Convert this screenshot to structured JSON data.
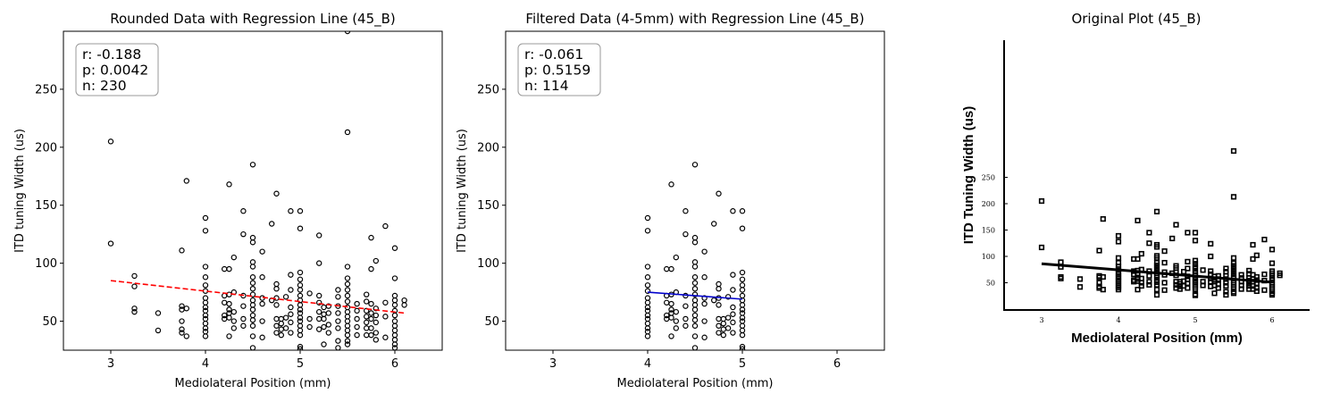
{
  "chart_data": [
    {
      "type": "scatter",
      "title": "Rounded Data with Regression Line (45_B)",
      "xlabel": "Mediolateral Position (mm)",
      "ylabel": "ITD tuning Width (us)",
      "xlim": [
        2.5,
        6.5
      ],
      "ylim": [
        25,
        300
      ],
      "xticks": [
        "3",
        "4",
        "5",
        "6"
      ],
      "yticks": [
        "50",
        "100",
        "150",
        "200",
        "250"
      ],
      "stats": [
        "r: -0.188",
        "p: 0.0042",
        "n: 230"
      ],
      "regression": {
        "x": [
          3.0,
          6.1
        ],
        "y": [
          85,
          57
        ],
        "color": "#ff0000",
        "style": "dashed"
      },
      "points": [
        [
          3.0,
          205
        ],
        [
          3.0,
          117
        ],
        [
          3.25,
          89
        ],
        [
          3.25,
          80
        ],
        [
          3.25,
          61
        ],
        [
          3.25,
          58
        ],
        [
          3.5,
          57
        ],
        [
          3.5,
          42
        ],
        [
          3.75,
          111
        ],
        [
          3.75,
          63
        ],
        [
          3.75,
          60
        ],
        [
          3.75,
          50
        ],
        [
          3.75,
          43
        ],
        [
          3.75,
          40
        ],
        [
          3.8,
          171
        ],
        [
          3.8,
          61
        ],
        [
          3.8,
          37
        ],
        [
          4.0,
          139
        ],
        [
          4.0,
          128
        ],
        [
          4.0,
          97
        ],
        [
          4.0,
          88
        ],
        [
          4.0,
          81
        ],
        [
          4.0,
          76
        ],
        [
          4.0,
          70
        ],
        [
          4.0,
          66
        ],
        [
          4.0,
          62
        ],
        [
          4.0,
          59
        ],
        [
          4.0,
          55
        ],
        [
          4.0,
          52
        ],
        [
          4.0,
          48
        ],
        [
          4.0,
          44
        ],
        [
          4.0,
          41
        ],
        [
          4.0,
          37
        ],
        [
          4.2,
          95
        ],
        [
          4.2,
          72
        ],
        [
          4.2,
          66
        ],
        [
          4.2,
          55
        ],
        [
          4.2,
          52
        ],
        [
          4.25,
          168
        ],
        [
          4.25,
          95
        ],
        [
          4.25,
          73
        ],
        [
          4.25,
          65
        ],
        [
          4.25,
          60
        ],
        [
          4.25,
          57
        ],
        [
          4.25,
          53
        ],
        [
          4.25,
          37
        ],
        [
          4.3,
          105
        ],
        [
          4.3,
          75
        ],
        [
          4.3,
          58
        ],
        [
          4.3,
          50
        ],
        [
          4.3,
          44
        ],
        [
          4.4,
          145
        ],
        [
          4.4,
          125
        ],
        [
          4.4,
          72
        ],
        [
          4.4,
          63
        ],
        [
          4.4,
          52
        ],
        [
          4.4,
          46
        ],
        [
          4.5,
          185
        ],
        [
          4.5,
          122
        ],
        [
          4.5,
          118
        ],
        [
          4.5,
          101
        ],
        [
          4.5,
          97
        ],
        [
          4.5,
          88
        ],
        [
          4.5,
          83
        ],
        [
          4.5,
          78
        ],
        [
          4.5,
          73
        ],
        [
          4.5,
          68
        ],
        [
          4.5,
          64
        ],
        [
          4.5,
          60
        ],
        [
          4.5,
          55
        ],
        [
          4.5,
          51
        ],
        [
          4.5,
          46
        ],
        [
          4.5,
          37
        ],
        [
          4.5,
          27
        ],
        [
          4.6,
          110
        ],
        [
          4.6,
          88
        ],
        [
          4.6,
          70
        ],
        [
          4.6,
          65
        ],
        [
          4.6,
          50
        ],
        [
          4.6,
          36
        ],
        [
          4.7,
          134
        ],
        [
          4.7,
          68
        ],
        [
          4.75,
          160
        ],
        [
          4.75,
          82
        ],
        [
          4.75,
          78
        ],
        [
          4.75,
          70
        ],
        [
          4.75,
          64
        ],
        [
          4.75,
          52
        ],
        [
          4.75,
          46
        ],
        [
          4.75,
          40
        ],
        [
          4.8,
          52
        ],
        [
          4.8,
          48
        ],
        [
          4.8,
          43
        ],
        [
          4.8,
          38
        ],
        [
          4.85,
          71
        ],
        [
          4.85,
          53
        ],
        [
          4.85,
          44
        ],
        [
          4.9,
          145
        ],
        [
          4.9,
          90
        ],
        [
          4.9,
          77
        ],
        [
          4.9,
          62
        ],
        [
          4.9,
          56
        ],
        [
          4.9,
          49
        ],
        [
          4.9,
          40
        ],
        [
          5.0,
          145
        ],
        [
          5.0,
          130
        ],
        [
          5.0,
          92
        ],
        [
          5.0,
          86
        ],
        [
          5.0,
          81
        ],
        [
          5.0,
          77
        ],
        [
          5.0,
          72
        ],
        [
          5.0,
          68
        ],
        [
          5.0,
          64
        ],
        [
          5.0,
          60
        ],
        [
          5.0,
          57
        ],
        [
          5.0,
          53
        ],
        [
          5.0,
          50
        ],
        [
          5.0,
          46
        ],
        [
          5.0,
          42
        ],
        [
          5.0,
          38
        ],
        [
          5.0,
          28
        ],
        [
          5.0,
          26
        ],
        [
          5.1,
          74
        ],
        [
          5.1,
          52
        ],
        [
          5.1,
          45
        ],
        [
          5.2,
          124
        ],
        [
          5.2,
          100
        ],
        [
          5.2,
          72
        ],
        [
          5.2,
          66
        ],
        [
          5.2,
          58
        ],
        [
          5.2,
          52
        ],
        [
          5.2,
          43
        ],
        [
          5.25,
          62
        ],
        [
          5.25,
          56
        ],
        [
          5.25,
          52
        ],
        [
          5.25,
          45
        ],
        [
          5.25,
          30
        ],
        [
          5.3,
          63
        ],
        [
          5.3,
          57
        ],
        [
          5.3,
          47
        ],
        [
          5.3,
          40
        ],
        [
          5.4,
          77
        ],
        [
          5.4,
          71
        ],
        [
          5.4,
          63
        ],
        [
          5.4,
          57
        ],
        [
          5.4,
          50
        ],
        [
          5.4,
          44
        ],
        [
          5.4,
          33
        ],
        [
          5.4,
          27
        ],
        [
          5.5,
          300
        ],
        [
          5.5,
          213
        ],
        [
          5.5,
          97
        ],
        [
          5.5,
          87
        ],
        [
          5.5,
          82
        ],
        [
          5.5,
          77
        ],
        [
          5.5,
          72
        ],
        [
          5.5,
          67
        ],
        [
          5.5,
          62
        ],
        [
          5.5,
          58
        ],
        [
          5.5,
          54
        ],
        [
          5.5,
          50
        ],
        [
          5.5,
          46
        ],
        [
          5.5,
          42
        ],
        [
          5.5,
          38
        ],
        [
          5.5,
          33
        ],
        [
          5.5,
          30
        ],
        [
          5.6,
          65
        ],
        [
          5.6,
          59
        ],
        [
          5.6,
          52
        ],
        [
          5.6,
          45
        ],
        [
          5.6,
          38
        ],
        [
          5.7,
          73
        ],
        [
          5.7,
          67
        ],
        [
          5.7,
          59
        ],
        [
          5.7,
          54
        ],
        [
          5.7,
          49
        ],
        [
          5.7,
          44
        ],
        [
          5.7,
          38
        ],
        [
          5.75,
          122
        ],
        [
          5.75,
          95
        ],
        [
          5.75,
          65
        ],
        [
          5.75,
          57
        ],
        [
          5.75,
          52
        ],
        [
          5.75,
          44
        ],
        [
          5.75,
          38
        ],
        [
          5.8,
          102
        ],
        [
          5.8,
          61
        ],
        [
          5.8,
          55
        ],
        [
          5.8,
          49
        ],
        [
          5.8,
          40
        ],
        [
          5.8,
          34
        ],
        [
          5.9,
          132
        ],
        [
          5.9,
          66
        ],
        [
          5.9,
          54
        ],
        [
          5.9,
          36
        ],
        [
          6.0,
          113
        ],
        [
          6.0,
          87
        ],
        [
          6.0,
          72
        ],
        [
          6.0,
          68
        ],
        [
          6.0,
          64
        ],
        [
          6.0,
          59
        ],
        [
          6.0,
          55
        ],
        [
          6.0,
          50
        ],
        [
          6.0,
          46
        ],
        [
          6.0,
          42
        ],
        [
          6.0,
          38
        ],
        [
          6.0,
          34
        ],
        [
          6.0,
          30
        ],
        [
          6.0,
          27
        ],
        [
          6.1,
          68
        ],
        [
          6.1,
          64
        ]
      ]
    },
    {
      "type": "scatter",
      "title": "Filtered Data (4-5mm) with Regression Line (45_B)",
      "xlabel": "Mediolateral Position (mm)",
      "ylabel": "ITD tuning Width (us)",
      "xlim": [
        2.5,
        6.5
      ],
      "ylim": [
        25,
        300
      ],
      "xticks": [
        "3",
        "4",
        "5",
        "6"
      ],
      "yticks": [
        "50",
        "100",
        "150",
        "200",
        "250"
      ],
      "stats": [
        "r: -0.061",
        "p: 0.5159",
        "n: 114"
      ],
      "regression": {
        "x": [
          4.0,
          5.0
        ],
        "y": [
          75,
          69
        ],
        "color": "#0000cc",
        "style": "solid"
      },
      "points": [
        [
          4.0,
          139
        ],
        [
          4.0,
          128
        ],
        [
          4.0,
          97
        ],
        [
          4.0,
          88
        ],
        [
          4.0,
          81
        ],
        [
          4.0,
          76
        ],
        [
          4.0,
          70
        ],
        [
          4.0,
          66
        ],
        [
          4.0,
          62
        ],
        [
          4.0,
          59
        ],
        [
          4.0,
          55
        ],
        [
          4.0,
          52
        ],
        [
          4.0,
          48
        ],
        [
          4.0,
          44
        ],
        [
          4.0,
          41
        ],
        [
          4.0,
          37
        ],
        [
          4.2,
          95
        ],
        [
          4.2,
          72
        ],
        [
          4.2,
          66
        ],
        [
          4.2,
          55
        ],
        [
          4.2,
          52
        ],
        [
          4.25,
          168
        ],
        [
          4.25,
          95
        ],
        [
          4.25,
          73
        ],
        [
          4.25,
          65
        ],
        [
          4.25,
          60
        ],
        [
          4.25,
          57
        ],
        [
          4.25,
          53
        ],
        [
          4.25,
          37
        ],
        [
          4.3,
          105
        ],
        [
          4.3,
          75
        ],
        [
          4.3,
          58
        ],
        [
          4.3,
          50
        ],
        [
          4.3,
          44
        ],
        [
          4.4,
          145
        ],
        [
          4.4,
          125
        ],
        [
          4.4,
          72
        ],
        [
          4.4,
          63
        ],
        [
          4.4,
          52
        ],
        [
          4.4,
          46
        ],
        [
          4.5,
          185
        ],
        [
          4.5,
          122
        ],
        [
          4.5,
          118
        ],
        [
          4.5,
          101
        ],
        [
          4.5,
          97
        ],
        [
          4.5,
          88
        ],
        [
          4.5,
          83
        ],
        [
          4.5,
          78
        ],
        [
          4.5,
          73
        ],
        [
          4.5,
          68
        ],
        [
          4.5,
          64
        ],
        [
          4.5,
          60
        ],
        [
          4.5,
          55
        ],
        [
          4.5,
          51
        ],
        [
          4.5,
          46
        ],
        [
          4.5,
          37
        ],
        [
          4.5,
          27
        ],
        [
          4.6,
          110
        ],
        [
          4.6,
          88
        ],
        [
          4.6,
          70
        ],
        [
          4.6,
          65
        ],
        [
          4.6,
          50
        ],
        [
          4.6,
          36
        ],
        [
          4.7,
          134
        ],
        [
          4.7,
          68
        ],
        [
          4.75,
          160
        ],
        [
          4.75,
          82
        ],
        [
          4.75,
          78
        ],
        [
          4.75,
          70
        ],
        [
          4.75,
          64
        ],
        [
          4.75,
          52
        ],
        [
          4.75,
          46
        ],
        [
          4.75,
          40
        ],
        [
          4.8,
          52
        ],
        [
          4.8,
          48
        ],
        [
          4.8,
          43
        ],
        [
          4.8,
          38
        ],
        [
          4.85,
          71
        ],
        [
          4.85,
          53
        ],
        [
          4.85,
          44
        ],
        [
          4.9,
          145
        ],
        [
          4.9,
          90
        ],
        [
          4.9,
          77
        ],
        [
          4.9,
          62
        ],
        [
          4.9,
          56
        ],
        [
          4.9,
          49
        ],
        [
          4.9,
          40
        ],
        [
          5.0,
          145
        ],
        [
          5.0,
          130
        ],
        [
          5.0,
          92
        ],
        [
          5.0,
          86
        ],
        [
          5.0,
          81
        ],
        [
          5.0,
          77
        ],
        [
          5.0,
          72
        ],
        [
          5.0,
          68
        ],
        [
          5.0,
          64
        ],
        [
          5.0,
          60
        ],
        [
          5.0,
          57
        ],
        [
          5.0,
          53
        ],
        [
          5.0,
          50
        ],
        [
          5.0,
          46
        ],
        [
          5.0,
          42
        ],
        [
          5.0,
          38
        ],
        [
          5.0,
          28
        ],
        [
          5.0,
          26
        ]
      ]
    },
    {
      "type": "scatter",
      "title": "Original Plot (45_B)",
      "xlabel": "Mediolateral Position (mm)",
      "ylabel": "ITD Tuning Width (us)",
      "xlim": [
        2.5,
        6.5
      ],
      "ylim": [
        25,
        300
      ],
      "xticks": [
        "3",
        "4",
        "5",
        "6"
      ],
      "yticks": [
        "50",
        "100",
        "150",
        "200",
        "250"
      ],
      "regression": {
        "x": [
          3.0,
          6.0
        ],
        "y": [
          86,
          51
        ],
        "color": "#000000",
        "style": "solid"
      }
    }
  ]
}
